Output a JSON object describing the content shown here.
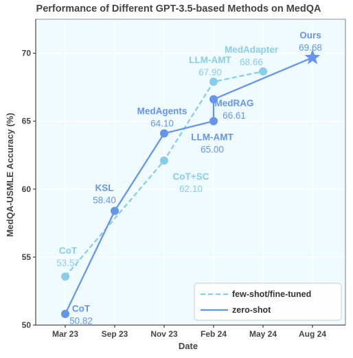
{
  "chart_data": {
    "type": "line",
    "title": "Performance of Different GPT-3.5-based Methods on MedQA",
    "xlabel": "Date",
    "ylabel": "MedQA-USMLE Accuracy (%)",
    "categories": [
      "Mar 23",
      "Sep 23",
      "Nov 23",
      "Feb 24",
      "May 24",
      "Aug 24"
    ],
    "yticks": [
      50,
      55,
      60,
      65,
      70
    ],
    "ylim": [
      50,
      72.5
    ],
    "grid": true,
    "legend_position": "bottom-right",
    "colors": {
      "few_shot": "#87ceeb",
      "zero_shot": "#6495ed",
      "background": "#f0fbff",
      "grid": "#ffffff"
    },
    "series": [
      {
        "name": "few-shot/fine-tuned",
        "style": "dashed",
        "points": [
          {
            "x": "Mar 23",
            "y": 53.57,
            "label": "CoT",
            "value_text": "53.57",
            "marker": "circle"
          },
          {
            "x": "Nov 23",
            "y": 62.1,
            "label": "CoT+SC",
            "value_text": "62.10",
            "marker": "circle"
          },
          {
            "x": "Feb 24",
            "y": 67.9,
            "label": "LLM-AMT",
            "value_text": "67.90",
            "marker": "circle"
          },
          {
            "x": "May 24",
            "y": 68.66,
            "label": "MedAdapter",
            "value_text": "68.66",
            "marker": "circle"
          }
        ]
      },
      {
        "name": "zero-shot",
        "style": "solid",
        "points": [
          {
            "x": "Mar 23",
            "y": 50.82,
            "label": "CoT",
            "value_text": "50.82",
            "marker": "circle"
          },
          {
            "x": "Sep 23",
            "y": 58.4,
            "label": "KSL",
            "value_text": "58.40",
            "marker": "circle"
          },
          {
            "x": "Nov 23",
            "y": 64.1,
            "label": "MedAgents",
            "value_text": "64.10",
            "marker": "circle"
          },
          {
            "x": "Feb 24",
            "y": 65.0,
            "label": "LLM-AMT",
            "value_text": "65.00",
            "marker": "circle"
          },
          {
            "x": "Feb 24",
            "y": 66.61,
            "label": "MedRAG",
            "value_text": "66.61",
            "marker": "circle"
          },
          {
            "x": "Aug 24",
            "y": 69.68,
            "label": "Ours",
            "value_text": "69.68",
            "marker": "star"
          }
        ]
      }
    ]
  }
}
